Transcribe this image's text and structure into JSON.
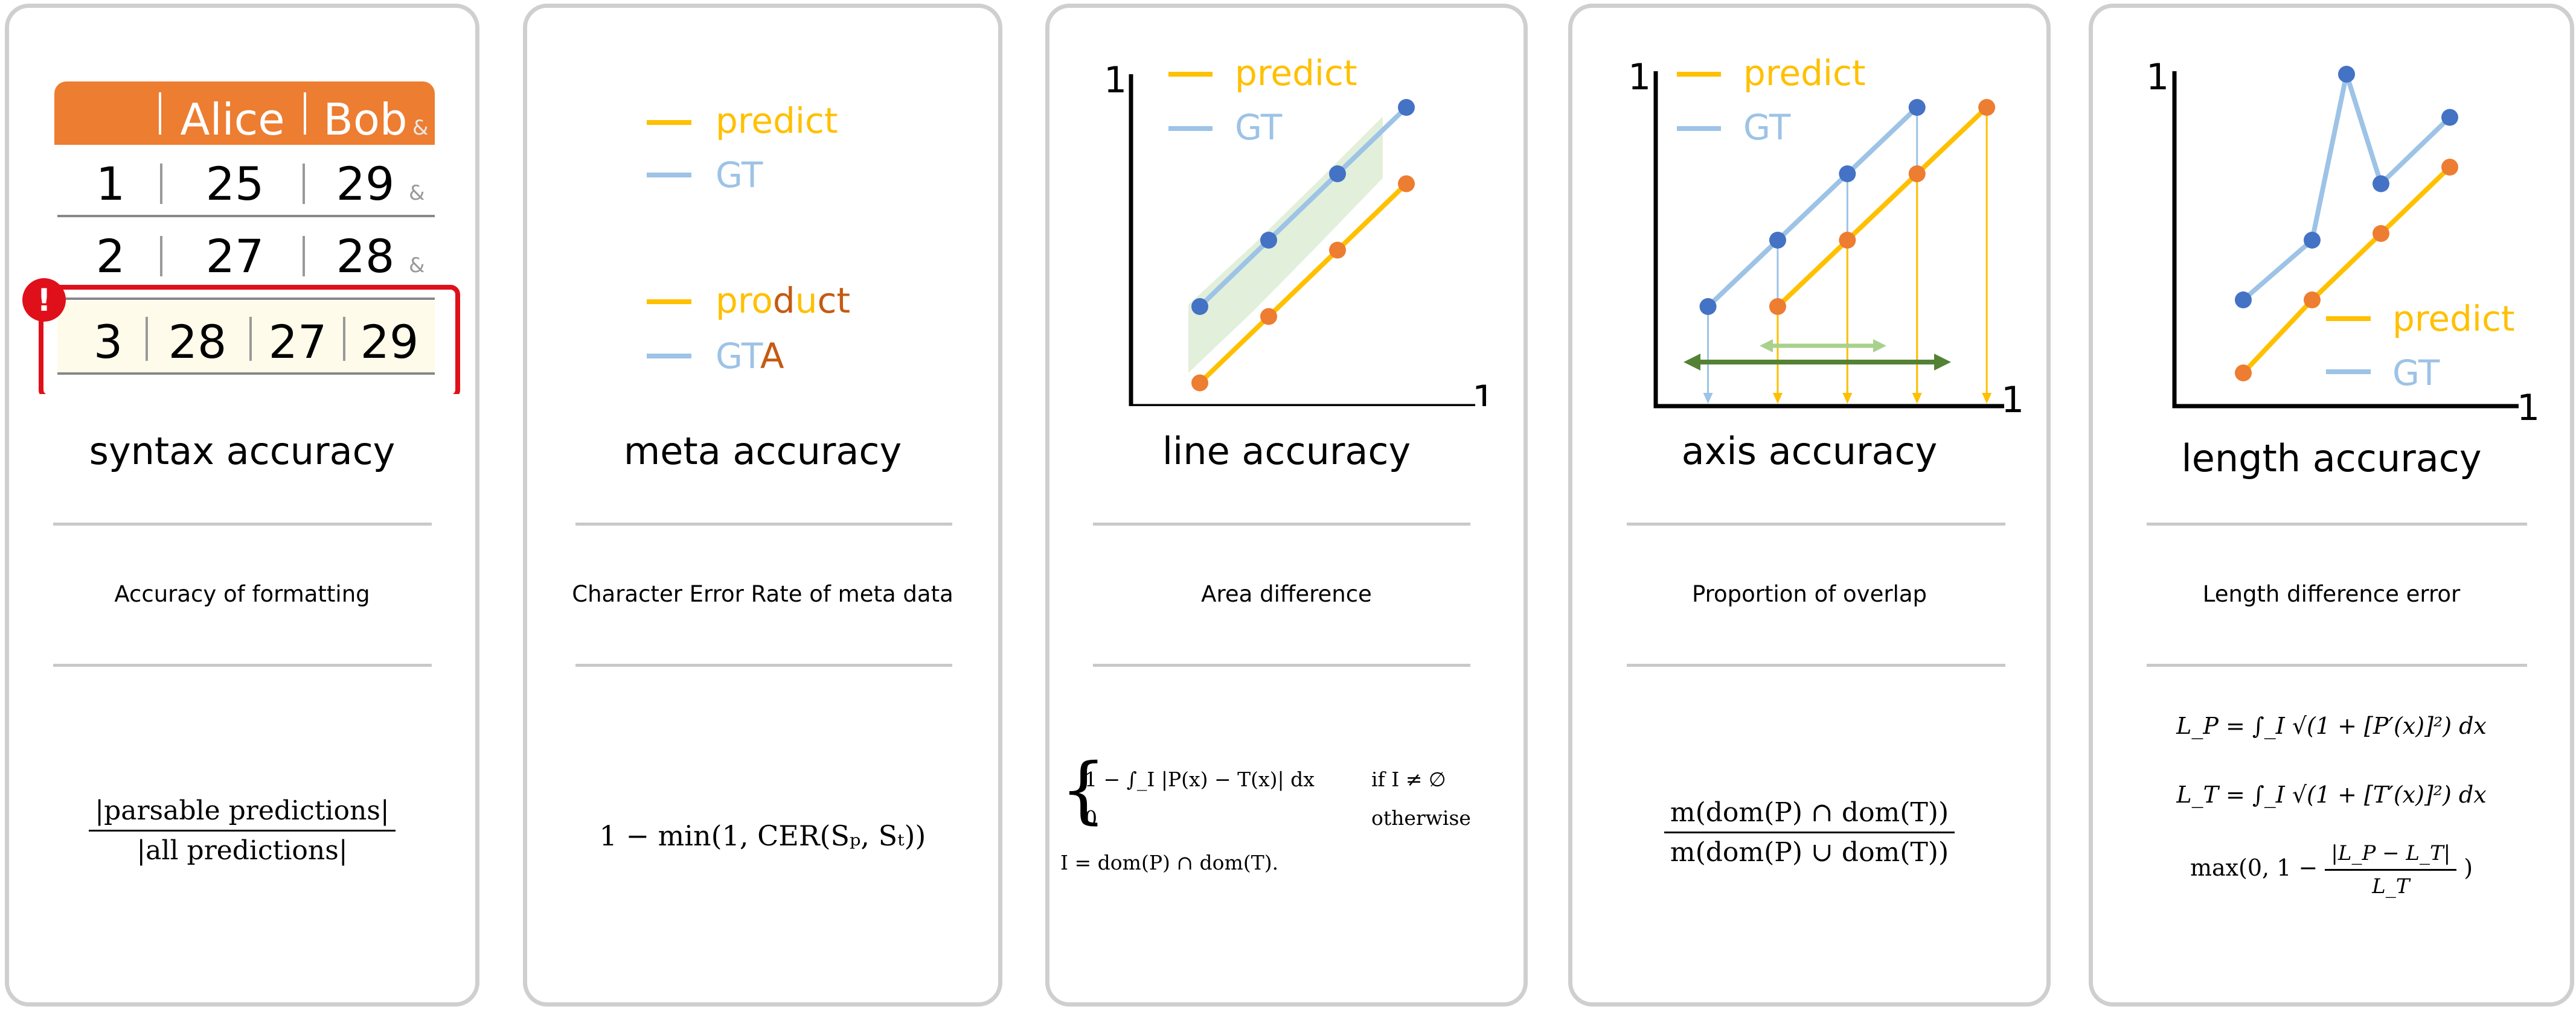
{
  "colors": {
    "orange": "#ED7D31",
    "yellow": "#FFC000",
    "blue": "#4472C4",
    "lightblue": "#9DC3E6",
    "green": "#548235",
    "lightgreen": "#A9D18E",
    "red": "#E0101A"
  },
  "cards": [
    {
      "title": "syntax accuracy",
      "description": "Accuracy of formatting",
      "formula": {
        "numerator": "|parsable predictions|",
        "denominator": "|all predictions|"
      },
      "table": {
        "header": [
          "Alice",
          "Bob"
        ],
        "rows": [
          [
            "1",
            "25",
            "29"
          ],
          [
            "2",
            "27",
            "28"
          ]
        ],
        "error_row": [
          "3",
          "28",
          "27",
          "29"
        ],
        "amp": "&",
        "alert": "!"
      }
    },
    {
      "title": "meta accuracy",
      "description": "Character Error Rate of meta data",
      "formula": {
        "text": "1 − min(1, CER(Sₚ, Sₜ))"
      },
      "legend1": {
        "predict": "predict",
        "gt": "GT"
      },
      "legend2": {
        "predict": [
          "pro",
          "d",
          "u",
          "ct"
        ],
        "gt": [
          "GT",
          "A"
        ]
      }
    },
    {
      "title": "line accuracy",
      "description": "Area difference",
      "formula": {
        "line1": "1 − ∫_I |P(x) − T(x)| dx",
        "cond1": "if I ≠ ∅",
        "line2": "0",
        "cond2": "otherwise",
        "line3": "I = dom(P) ∩ dom(T)."
      },
      "axis_label": "1",
      "legend": {
        "predict": "predict",
        "gt": "GT"
      }
    },
    {
      "title": "axis accuracy",
      "description": "Proportion of overlap",
      "formula": {
        "numerator": "m(dom(P) ∩ dom(T))",
        "denominator": "m(dom(P) ∪ dom(T))"
      },
      "axis_label": "1",
      "legend": {
        "predict": "predict",
        "gt": "GT"
      }
    },
    {
      "title": "length accuracy",
      "description": "Length difference error",
      "formula": {
        "lp": "L_P = ∫_I √(1 + [P′(x)]²) dx",
        "lt": "L_T = ∫_I √(1 + [T′(x)]²) dx",
        "max_pre": "max(0, 1 −",
        "max_num": "|L_P − L_T|",
        "max_den": "L_T",
        "max_post": ")"
      },
      "axis_label": "1",
      "legend": {
        "predict": "predict",
        "gt": "GT"
      }
    }
  ],
  "chart_data": [
    {
      "type": "line",
      "title": "line accuracy",
      "xlim": [
        0,
        1
      ],
      "ylim": [
        0,
        1
      ],
      "series": [
        {
          "name": "GT",
          "x": [
            0.2,
            0.4,
            0.6,
            0.8
          ],
          "y": [
            0.3,
            0.5,
            0.7,
            0.9
          ]
        },
        {
          "name": "predict",
          "x": [
            0.2,
            0.4,
            0.6,
            0.8
          ],
          "y": [
            0.07,
            0.27,
            0.47,
            0.67
          ]
        }
      ]
    },
    {
      "type": "line",
      "title": "axis accuracy",
      "xlim": [
        0,
        1
      ],
      "ylim": [
        0,
        1
      ],
      "series": [
        {
          "name": "GT",
          "x": [
            0.15,
            0.35,
            0.55,
            0.75
          ],
          "y": [
            0.3,
            0.5,
            0.7,
            0.9
          ]
        },
        {
          "name": "predict",
          "x": [
            0.35,
            0.55,
            0.75,
            0.95
          ],
          "y": [
            0.3,
            0.5,
            0.7,
            0.9
          ]
        }
      ]
    },
    {
      "type": "line",
      "title": "length accuracy",
      "xlim": [
        0,
        1
      ],
      "ylim": [
        0,
        1
      ],
      "series": [
        {
          "name": "GT",
          "x": [
            0.2,
            0.4,
            0.5,
            0.6,
            0.8
          ],
          "y": [
            0.32,
            0.5,
            1.0,
            0.67,
            0.87
          ]
        },
        {
          "name": "predict",
          "x": [
            0.2,
            0.4,
            0.6,
            0.8
          ],
          "y": [
            0.1,
            0.32,
            0.52,
            0.72
          ]
        }
      ]
    }
  ]
}
